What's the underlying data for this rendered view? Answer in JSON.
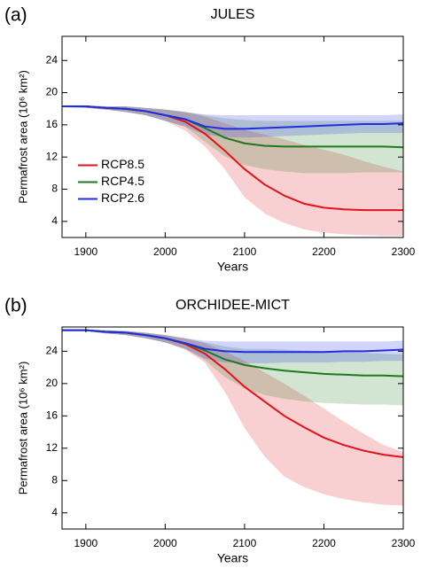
{
  "chart_data": [
    {
      "type": "line",
      "panel_label": "(a)",
      "title": "JULES",
      "x_label": "Years",
      "y_label": "Permafrost area (10⁶ km²)",
      "xlim": [
        1870,
        2300
      ],
      "xticks": [
        1900,
        2000,
        2100,
        2200,
        2300
      ],
      "ylim": [
        2,
        27
      ],
      "yticks": [
        4,
        8,
        12,
        16,
        20,
        24
      ],
      "legend": "center-left",
      "x": [
        1870,
        1900,
        1925,
        1950,
        1975,
        2000,
        2025,
        2050,
        2075,
        2100,
        2125,
        2150,
        2175,
        2200,
        2225,
        2250,
        2275,
        2300
      ],
      "series": [
        {
          "name": "RCP8.5",
          "color": "#e3121b",
          "values": [
            18.3,
            18.3,
            18.1,
            18.0,
            17.7,
            17.2,
            16.4,
            14.9,
            12.8,
            10.5,
            8.6,
            7.2,
            6.2,
            5.7,
            5.5,
            5.4,
            5.4,
            5.4
          ],
          "lower": [
            18.2,
            18.1,
            17.9,
            17.6,
            17.2,
            16.5,
            15.3,
            13.3,
            10.5,
            7.0,
            5.0,
            3.8,
            3.0,
            2.6,
            2.4,
            2.3,
            2.2,
            2.2
          ],
          "upper": [
            18.4,
            18.4,
            18.3,
            18.3,
            18.1,
            17.9,
            17.6,
            17.0,
            16.2,
            15.4,
            14.8,
            14.2,
            13.5,
            12.9,
            12.3,
            11.5,
            10.8,
            10.2
          ]
        },
        {
          "name": "RCP4.5",
          "color": "#1e7a1e",
          "values": [
            18.3,
            18.3,
            18.1,
            18.0,
            17.7,
            17.2,
            16.7,
            15.6,
            14.4,
            13.7,
            13.4,
            13.3,
            13.3,
            13.3,
            13.3,
            13.3,
            13.3,
            13.2
          ],
          "lower": [
            18.2,
            18.1,
            17.9,
            17.6,
            17.2,
            16.5,
            15.8,
            13.9,
            12.1,
            11.0,
            10.5,
            10.2,
            10.0,
            10.0,
            10.0,
            10.1,
            10.1,
            10.1
          ],
          "upper": [
            18.4,
            18.4,
            18.3,
            18.3,
            18.1,
            17.9,
            17.6,
            17.2,
            16.8,
            16.6,
            16.5,
            16.5,
            16.5,
            16.5,
            16.5,
            16.5,
            16.5,
            16.5
          ]
        },
        {
          "name": "RCP2.6",
          "color": "#1f2ee0",
          "values": [
            18.3,
            18.3,
            18.1,
            18.0,
            17.7,
            17.2,
            16.7,
            15.8,
            15.5,
            15.5,
            15.6,
            15.7,
            15.8,
            15.9,
            16.0,
            16.1,
            16.1,
            16.2
          ],
          "lower": [
            18.2,
            18.1,
            17.9,
            17.6,
            17.2,
            16.5,
            15.8,
            14.8,
            14.5,
            14.4,
            14.5,
            14.6,
            14.7,
            14.8,
            14.9,
            15.0,
            15.0,
            15.0
          ],
          "upper": [
            18.4,
            18.4,
            18.3,
            18.3,
            18.1,
            17.9,
            17.6,
            17.3,
            17.2,
            17.2,
            17.2,
            17.2,
            17.2,
            17.2,
            17.2,
            17.2,
            17.2,
            17.3
          ]
        }
      ]
    },
    {
      "type": "line",
      "panel_label": "(b)",
      "title": "ORCHIDEE-MICT",
      "x_label": "Years",
      "y_label": "Permafrost area (10⁶ km²)",
      "xlim": [
        1870,
        2300
      ],
      "xticks": [
        1900,
        2000,
        2100,
        2200,
        2300
      ],
      "ylim": [
        2,
        27
      ],
      "yticks": [
        4,
        8,
        12,
        16,
        20,
        24
      ],
      "x": [
        1870,
        1900,
        1925,
        1950,
        1975,
        2000,
        2025,
        2050,
        2075,
        2100,
        2125,
        2150,
        2175,
        2200,
        2225,
        2250,
        2275,
        2300
      ],
      "series": [
        {
          "color": "#e3121b",
          "values": [
            26.6,
            26.6,
            26.4,
            26.3,
            26.0,
            25.6,
            24.9,
            23.7,
            21.8,
            19.6,
            17.8,
            16.0,
            14.6,
            13.3,
            12.4,
            11.7,
            11.2,
            10.9
          ],
          "lower": [
            26.5,
            26.5,
            26.2,
            26.0,
            25.6,
            25.1,
            24.2,
            22.6,
            19.0,
            14.5,
            11.0,
            8.5,
            7.2,
            6.3,
            5.7,
            5.3,
            5.0,
            4.9
          ],
          "upper": [
            26.7,
            26.7,
            26.6,
            26.5,
            26.3,
            26.0,
            25.6,
            25.0,
            24.0,
            22.8,
            21.4,
            20.0,
            18.5,
            16.9,
            15.3,
            13.8,
            12.4,
            11.5
          ]
        },
        {
          "color": "#1e7a1e",
          "values": [
            26.6,
            26.6,
            26.4,
            26.3,
            26.0,
            25.6,
            25.0,
            24.1,
            23.0,
            22.3,
            21.9,
            21.6,
            21.4,
            21.2,
            21.1,
            21.0,
            21.0,
            20.9
          ],
          "lower": [
            26.5,
            26.5,
            26.2,
            26.0,
            25.6,
            25.1,
            24.3,
            22.9,
            20.8,
            19.4,
            18.6,
            18.1,
            17.8,
            17.6,
            17.5,
            17.4,
            17.4,
            17.3
          ],
          "upper": [
            26.7,
            26.7,
            26.6,
            26.5,
            26.3,
            26.0,
            25.6,
            25.1,
            24.6,
            24.3,
            24.3,
            24.2,
            24.1,
            24.0,
            23.9,
            23.8,
            23.7,
            23.6
          ]
        },
        {
          "color": "#1f2ee0",
          "values": [
            26.6,
            26.6,
            26.4,
            26.3,
            26.0,
            25.6,
            25.0,
            24.3,
            24.0,
            23.9,
            23.9,
            23.9,
            23.9,
            23.9,
            24.0,
            24.0,
            24.1,
            24.2
          ],
          "lower": [
            26.5,
            26.5,
            26.2,
            26.0,
            25.6,
            25.1,
            24.3,
            23.1,
            22.6,
            22.5,
            22.5,
            22.6,
            22.6,
            22.6,
            22.7,
            22.7,
            22.8,
            22.8
          ],
          "upper": [
            26.7,
            26.7,
            26.6,
            26.5,
            26.3,
            26.0,
            25.6,
            25.3,
            25.2,
            25.2,
            25.2,
            25.2,
            25.2,
            25.2,
            25.2,
            25.2,
            25.2,
            25.3
          ]
        }
      ]
    }
  ]
}
